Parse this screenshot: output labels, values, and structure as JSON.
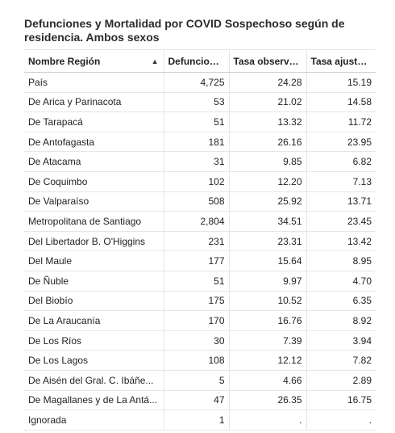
{
  "title": "Defunciones y Mortalidad por COVID Sospechoso según de residencia. Ambos sexos",
  "table": {
    "columns": [
      "Nombre Región",
      "Defunciones",
      "Tasa observada",
      "Tasa ajustada"
    ],
    "sort_icon": "sort-ascending-icon",
    "rows": [
      [
        "País",
        "4,725",
        "24.28",
        "15.19"
      ],
      [
        "De Arica y Parinacota",
        "53",
        "21.02",
        "14.58"
      ],
      [
        "De Tarapacá",
        "51",
        "13.32",
        "11.72"
      ],
      [
        "De Antofagasta",
        "181",
        "26.16",
        "23.95"
      ],
      [
        "De Atacama",
        "31",
        "9.85",
        "6.82"
      ],
      [
        "De Coquimbo",
        "102",
        "12.20",
        "7.13"
      ],
      [
        "De Valparaíso",
        "508",
        "25.92",
        "13.71"
      ],
      [
        "Metropolitana de Santiago",
        "2,804",
        "34.51",
        "23.45"
      ],
      [
        "Del Libertador B. O'Higgins",
        "231",
        "23.31",
        "13.42"
      ],
      [
        "Del Maule",
        "177",
        "15.64",
        "8.95"
      ],
      [
        "De Ñuble",
        "51",
        "9.97",
        "4.70"
      ],
      [
        "Del Biobío",
        "175",
        "10.52",
        "6.35"
      ],
      [
        "De La Araucanía",
        "170",
        "16.76",
        "8.92"
      ],
      [
        "De Los Ríos",
        "30",
        "7.39",
        "3.94"
      ],
      [
        "De Los Lagos",
        "108",
        "12.12",
        "7.82"
      ],
      [
        "De Aisén del Gral. C. Ibáñe...",
        "5",
        "4.66",
        "2.89"
      ],
      [
        "De Magallanes y de La Antá...",
        "47",
        "26.35",
        "16.75"
      ],
      [
        "Ignorada",
        "1",
        ".",
        "."
      ]
    ]
  }
}
